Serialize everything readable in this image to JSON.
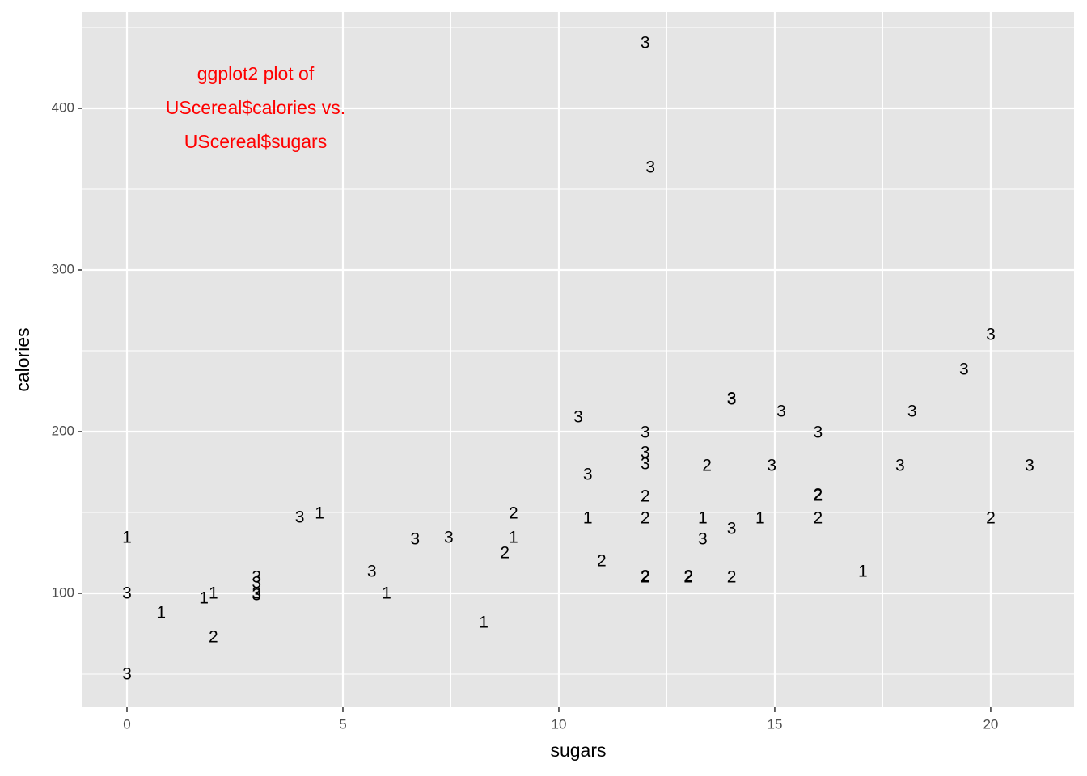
{
  "chart_data": {
    "type": "scatter",
    "x_label": "sugars",
    "y_label": "calories",
    "annotation": [
      "ggplot2 plot of",
      "UScereal$calories vs.",
      "UScereal$sugars"
    ],
    "annotation_color": "#ff0000",
    "xlim": [
      -1.03,
      21.93
    ],
    "ylim": [
      29.5,
      459.5
    ],
    "xticks": [
      0,
      5,
      10,
      15,
      20
    ],
    "yticks": [
      100,
      200,
      300,
      400
    ],
    "x_minor_ticks": [
      2.5,
      7.5,
      12.5,
      17.5
    ],
    "y_minor_ticks": [
      50,
      150,
      250,
      350,
      450
    ],
    "grid": true,
    "panel_color": "#e5e5e5",
    "x": [
      12,
      12.12,
      20,
      19.38,
      18.18,
      15.15,
      14,
      14,
      10.45,
      12,
      16,
      12,
      12,
      10.67,
      13.43,
      14.93,
      17.9,
      20.9,
      12,
      16,
      16,
      12,
      10.67,
      13.33,
      14.66,
      16,
      20,
      13.33,
      14,
      8.95,
      8.95,
      8.75,
      7.45,
      6.67,
      4.46,
      4,
      5.67,
      6.01,
      0,
      0,
      0,
      0.79,
      1.78,
      2,
      2,
      3,
      3,
      3,
      3,
      8.26,
      10.99,
      12,
      12,
      13,
      13,
      14,
      17.04
    ],
    "values": [
      440,
      363,
      259.5,
      238,
      212,
      212,
      219.5,
      220,
      208.5,
      199,
      199,
      186.5,
      179.5,
      173,
      178.5,
      178.5,
      178.5,
      178.5,
      159.5,
      160,
      160.5,
      146,
      146,
      146,
      146,
      146,
      146,
      133,
      139.5,
      149,
      134,
      124.5,
      134,
      133,
      149,
      146.5,
      113,
      99.5,
      134,
      99.5,
      49.5,
      87.5,
      96.5,
      99.5,
      72.5,
      109.5,
      106,
      99.5,
      98.5,
      81.5,
      119.5,
      109.5,
      110,
      109.5,
      110,
      109.5,
      113
    ],
    "point_labels": [
      "3",
      "3",
      "3",
      "3",
      "3",
      "3",
      "3",
      "3",
      "3",
      "3",
      "3",
      "3",
      "3",
      "3",
      "2",
      "3",
      "3",
      "3",
      "2",
      "2",
      "2",
      "2",
      "1",
      "1",
      "1",
      "2",
      "2",
      "3",
      "3",
      "2",
      "1",
      "2",
      "3",
      "3",
      "1",
      "3",
      "3",
      "1",
      "1",
      "3",
      "3",
      "1",
      "1",
      "1",
      "2",
      "3",
      "3",
      "3",
      "3",
      "1",
      "2",
      "2",
      "2",
      "2",
      "2",
      "2",
      "1"
    ]
  }
}
